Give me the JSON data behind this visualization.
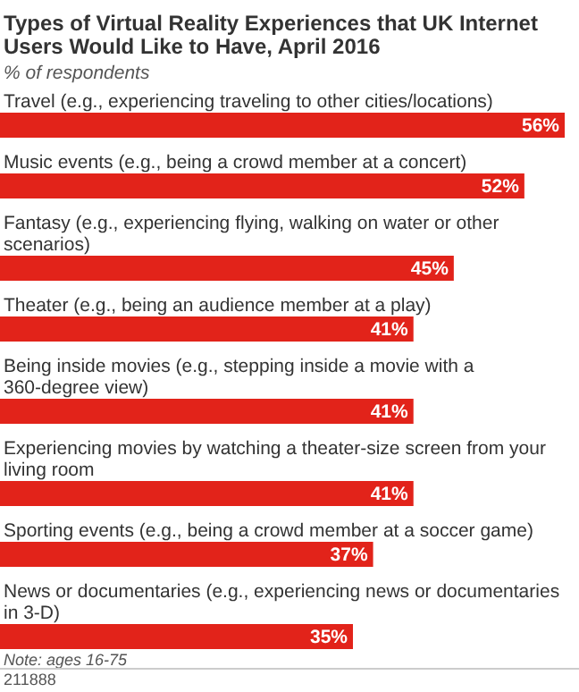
{
  "chart_data": {
    "type": "bar",
    "orientation": "horizontal",
    "title": "Types of Virtual Reality Experiences that UK Internet Users Would Like to Have, April 2016",
    "subtitle": "% of respondents",
    "categories": [
      "Travel (e.g., experiencing traveling to other cities/locations)",
      "Music events (e.g., being a crowd member at a concert)",
      "Fantasy (e.g., experiencing flying, walking on water or other scenarios)",
      "Theater (e.g., being an audience member at a play)",
      "Being inside movies (e.g., stepping inside a movie with a 360-degree view)",
      "Experiencing movies by watching a theater-size screen from your living room",
      "Sporting events (e.g., being a crowd member at a soccer game)",
      "News or documentaries (e.g., experiencing news or documentaries in 3-D)"
    ],
    "values": [
      56,
      52,
      45,
      41,
      41,
      41,
      37,
      35
    ],
    "value_labels": [
      "56%",
      "52%",
      "45%",
      "41%",
      "41%",
      "41%",
      "37%",
      "35%"
    ],
    "color": "#e2231a",
    "annotations": [
      "Note: ages 16-75",
      "211888"
    ]
  }
}
